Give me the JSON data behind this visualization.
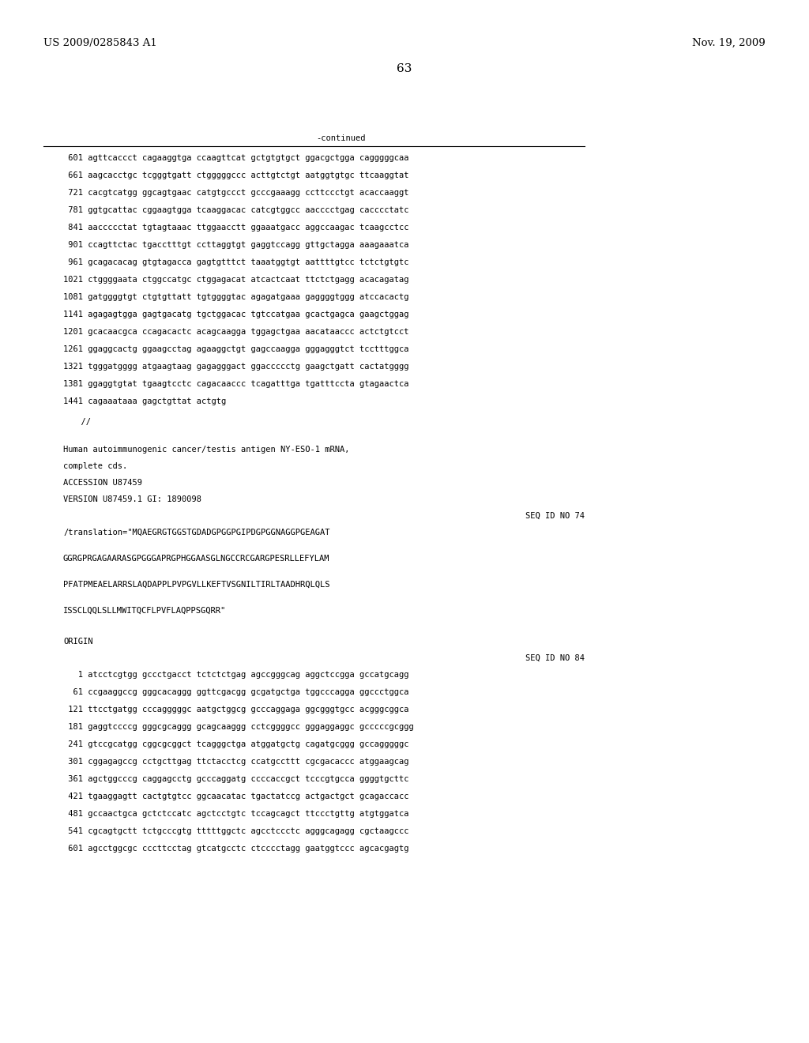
{
  "header_left": "US 2009/0285843 A1",
  "header_right": "Nov. 19, 2009",
  "page_number": "63",
  "continued_label": "-continued",
  "background_color": "#ffffff",
  "text_color": "#000000",
  "font_size_header": 9.5,
  "font_size_body": 7.5,
  "font_size_page": 11,
  "sequence_lines_top": [
    " 601 agttcaccct cagaaggtga ccaagttcat gctgtgtgct ggacgctgga cagggggcaa",
    " 661 aagcacctgc tcgggtgatt ctgggggccc acttgtctgt aatggtgtgc ttcaaggtat",
    " 721 cacgtcatgg ggcagtgaac catgtgccct gcccgaaagg ccttccctgt acaccaaggt",
    " 781 ggtgcattac cggaagtgga tcaaggacac catcgtggcc aacccctgag cacccctatc",
    " 841 aaccccctat tgtagtaaac ttggaacctt ggaaatgacc aggccaagac tcaagcctcc",
    " 901 ccagttctac tgacctttgt ccttaggtgt gaggtccagg gttgctagga aaagaaatca",
    " 961 gcagacacag gtgtagacca gagtgtttct taaatggtgt aattttgtcc tctctgtgtc",
    "1021 ctggggaata ctggccatgc ctggagacat atcactcaat ttctctgagg acacagatag",
    "1081 gatggggtgt ctgtgttatt tgtggggtac agagatgaaa gaggggtggg atccacactg",
    "1141 agagagtgga gagtgacatg tgctggacac tgtccatgaa gcactgagca gaagctggag",
    "1201 gcacaacgca ccagacactc acagcaagga tggagctgaa aacataaccc actctgtcct",
    "1261 ggaggcactg ggaagcctag agaaggctgt gagccaagga gggagggtct tcctttggca",
    "1321 tgggatgggg atgaagtaag gagagggact ggaccccctg gaagctgatt cactatgggg",
    "1381 ggaggtgtat tgaagtcctc cagacaaccc tcagatttga tgatttccta gtagaactca",
    "1441 cagaaataaa gagctgttat actgtg"
  ],
  "separator_line": "  //",
  "annotation_block": [
    "Human autoimmunogenic cancer/testis antigen NY-ESO-1 mRNA,",
    "complete cds.",
    "ACCESSION U87459",
    "VERSION U87459.1 GI: 1890098"
  ],
  "seq_id_74": "SEQ ID NO 74",
  "translation_line": "/translation=\"MQAEGRGTGGSTGDADGPGGPGIPDGPGGNAGGPGEAGAT",
  "translation_cont": [
    "GGRGPRGAGAARASGPGGGAPRGPHGGAASGLNGCCRCGARGPESRLLEFYLAM",
    "PFATPMEAELARRSLAQDAPPLPVPGVLLKEFTVSGNILTIRLTAADHRQLQLS",
    "ISSCLQQLSLLMWITQCFLPVFLAQPPSGQRR\""
  ],
  "origin_label": "ORIGIN",
  "seq_id_84": "SEQ ID NO 84",
  "sequence_lines_bottom": [
    "   1 atcctcgtgg gccctgacct tctctctgag agccgggcag aggctccgga gccatgcagg",
    "  61 ccgaaggccg gggcacaggg ggttcgacgg gcgatgctga tggcccagga ggccctggca",
    " 121 ttcctgatgg cccagggggc aatgctggcg gcccaggaga ggcgggtgcc acgggcggca",
    " 181 gaggtccccg gggcgcaggg gcagcaaggg cctcggggcc gggaggaggc gcccccgcggg",
    " 241 gtccgcatgg cggcgcggct tcagggctga atggatgctg cagatgcggg gccagggggc",
    " 301 cggagagccg cctgcttgag ttctacctcg ccatgccttt cgcgacaccc atggaagcag",
    " 361 agctggcccg caggagcctg gcccaggatg ccccaccgct tcccgtgcca ggggtgcttc",
    " 421 tgaaggagtt cactgtgtcc ggcaacatac tgactatccg actgactgct gcagaccacc",
    " 481 gccaactgca gctctccatc agctcctgtc tccagcagct ttccctgttg atgtggatca",
    " 541 cgcagtgctt tctgcccgtg tttttggctc agcctccctc agggcagagg cgctaagccc",
    " 601 agcctggcgc cccttcctag gtcatgcctc ctcccctagg gaatggtccc agcacgagtg"
  ]
}
